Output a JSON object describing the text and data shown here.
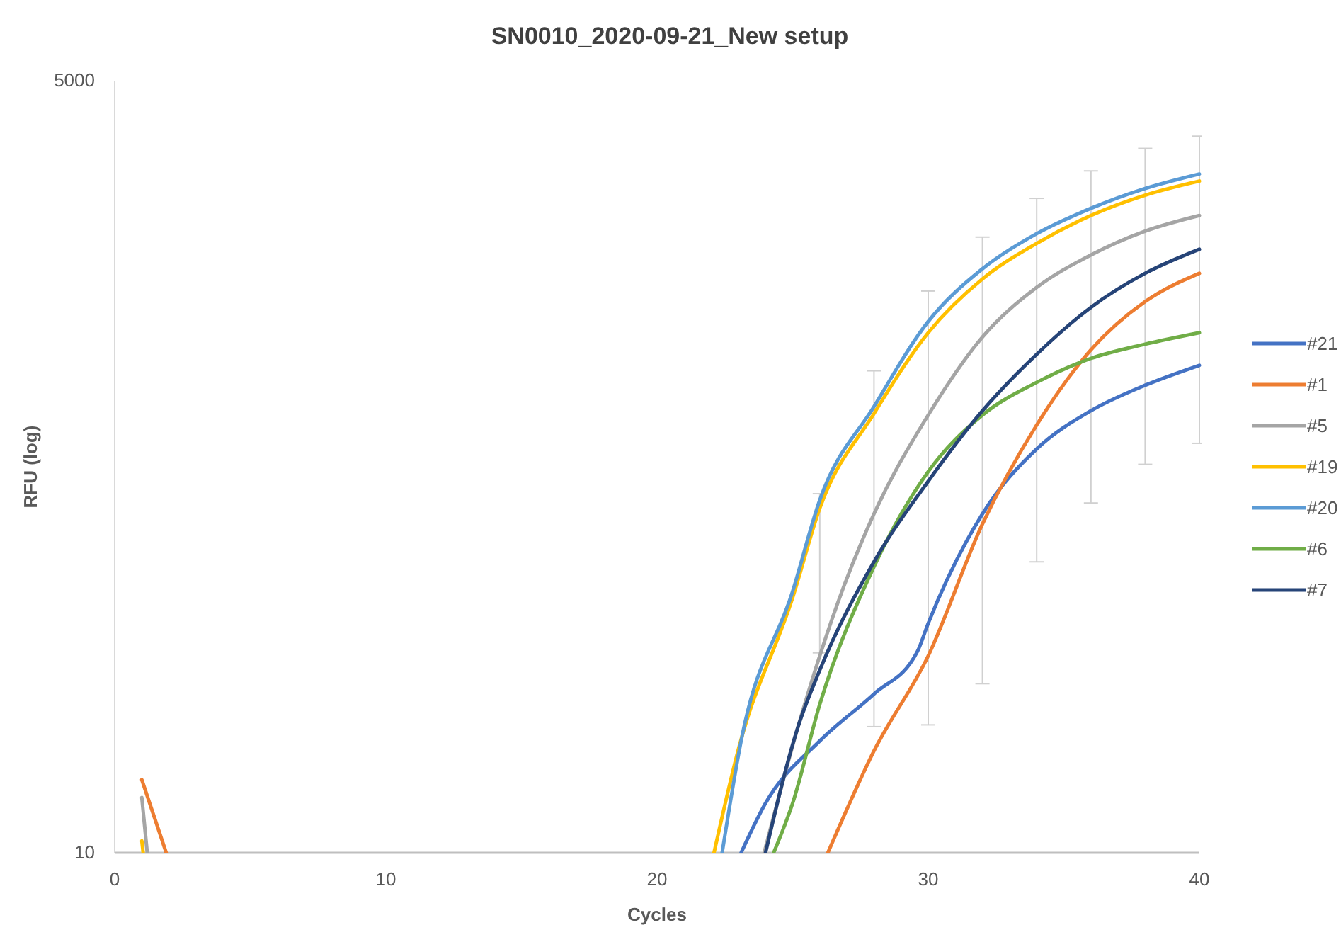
{
  "chart_data": {
    "type": "line",
    "title": "SN0010_2020-09-21_New setup",
    "xlabel": "Cycles",
    "ylabel": "RFU (log)",
    "log": "y",
    "xlim": [
      0,
      40
    ],
    "xticks": [
      0,
      10,
      20,
      30,
      40
    ],
    "ylim": [
      10,
      5000
    ],
    "yticks": [
      10,
      5000
    ],
    "grid": false,
    "legend": "right",
    "marker": "none",
    "line_style": "solid",
    "series": [
      {
        "name": "#21",
        "color": "#4472c4",
        "x": [
          23.1,
          24,
          26,
          28,
          29.6,
          30,
          32,
          34,
          36,
          38,
          40
        ],
        "values": [
          10,
          14.9,
          24.6,
          35.9,
          50.5,
          63.4,
          153,
          258,
          351,
          431,
          506
        ]
      },
      {
        "name": "#1",
        "color": "#ed7d31",
        "x": [
          1,
          1.9,
          null,
          26.3,
          28,
          30,
          32,
          34,
          36,
          38,
          40
        ],
        "values": [
          18,
          10,
          null,
          10,
          22.7,
          48.8,
          141,
          313,
          573,
          845,
          1061
        ]
      },
      {
        "name": "#5",
        "color": "#a5a5a5",
        "x": [
          1,
          1.2,
          null,
          23.95,
          25.2,
          26,
          26.9,
          28,
          30,
          32,
          34,
          36,
          38,
          40
        ],
        "values": [
          15.6,
          10,
          null,
          10,
          27.6,
          48.8,
          86,
          153,
          339,
          635,
          947,
          1230,
          1490,
          1690
        ]
      },
      {
        "name": "#19",
        "color": "#ffc000",
        "x": [
          1,
          1.05,
          null,
          22.1,
          23,
          25,
          26,
          28,
          30,
          32,
          34,
          36,
          38,
          40
        ],
        "values": [
          11,
          10,
          null,
          10,
          23,
          78,
          160,
          343,
          658,
          1014,
          1350,
          1690,
          1990,
          2230
        ]
      },
      {
        "name": "#20",
        "color": "#5b9bd5",
        "x": [
          22.4,
          23.1,
          25,
          26,
          28,
          30,
          32,
          34,
          36,
          38,
          40
        ],
        "values": [
          10,
          24.6,
          82,
          171,
          363,
          720,
          1100,
          1460,
          1790,
          2100,
          2360
        ],
        "errors": [
          null,
          null,
          null,
          [
            50,
            180
          ],
          [
            27.6,
            484
          ],
          [
            28,
            920
          ],
          [
            39,
            1420
          ],
          [
            104,
            1940
          ],
          [
            167,
            2420
          ],
          [
            228,
            2900
          ],
          [
            270,
            3200
          ]
        ]
      },
      {
        "name": "#6",
        "color": "#70ad47",
        "x": [
          24.3,
          25,
          26,
          28,
          30,
          32,
          34,
          36,
          38,
          40
        ],
        "values": [
          10,
          14.9,
          33,
          100,
          215,
          339,
          441,
          535,
          600,
          658
        ]
      },
      {
        "name": "#7",
        "color": "#264478",
        "x": [
          24,
          25.2,
          26,
          28,
          30,
          32,
          34,
          36,
          38,
          40
        ],
        "values": [
          10,
          27.6,
          43.5,
          104,
          199,
          351,
          553,
          807,
          1061,
          1288
        ]
      }
    ]
  }
}
